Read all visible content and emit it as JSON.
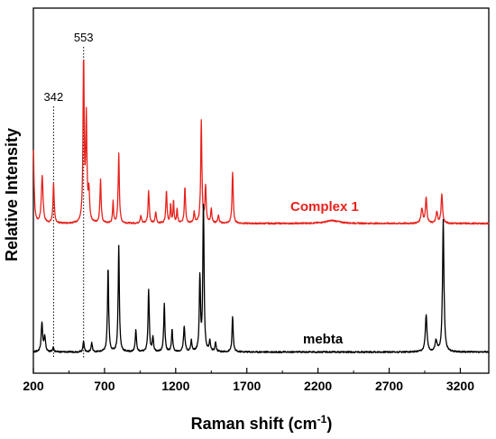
{
  "chart_data": {
    "type": "line",
    "xlabel": "Raman shift (cm",
    "xlabel_sup": "-1",
    "xlabel_end": ")",
    "ylabel": "Relative Intensity",
    "xlim": [
      200,
      3400
    ],
    "ylim": [
      0,
      1.0
    ],
    "x_ticks": [
      200,
      700,
      1200,
      1700,
      2200,
      2700,
      3200
    ],
    "x_tick_labels": [
      "200",
      "700",
      "1200",
      "1700",
      "2200",
      "2700",
      "3200"
    ],
    "y_ticks_shown": false,
    "grid": false,
    "annotations": [
      {
        "label": "342",
        "x": 342
      },
      {
        "label": "553",
        "x": 553
      }
    ],
    "series": [
      {
        "name": "Complex 1",
        "color": "#e8211b",
        "baseline": 0.41,
        "peaks": [
          [
            200,
            0.2,
            6
          ],
          [
            262,
            0.13,
            7
          ],
          [
            342,
            0.11,
            5
          ],
          [
            553,
            0.44,
            5
          ],
          [
            572,
            0.28,
            5
          ],
          [
            590,
            0.08,
            6
          ],
          [
            672,
            0.12,
            5
          ],
          [
            760,
            0.06,
            4
          ],
          [
            800,
            0.19,
            5
          ],
          [
            955,
            0.02,
            6
          ],
          [
            1010,
            0.09,
            5
          ],
          [
            1060,
            0.03,
            5
          ],
          [
            1135,
            0.09,
            5
          ],
          [
            1165,
            0.05,
            4
          ],
          [
            1185,
            0.06,
            4
          ],
          [
            1210,
            0.04,
            4
          ],
          [
            1265,
            0.1,
            5
          ],
          [
            1330,
            0.03,
            5
          ],
          [
            1380,
            0.28,
            5
          ],
          [
            1410,
            0.1,
            5
          ],
          [
            1450,
            0.04,
            5
          ],
          [
            1500,
            0.02,
            6
          ],
          [
            1600,
            0.14,
            5
          ],
          [
            2300,
            0.008,
            60
          ],
          [
            2930,
            0.04,
            8
          ],
          [
            2960,
            0.07,
            6
          ],
          [
            3035,
            0.03,
            7
          ],
          [
            3070,
            0.08,
            6
          ]
        ]
      },
      {
        "name": "mebta",
        "color": "#000000",
        "baseline": 0.058,
        "peaks": [
          [
            260,
            0.08,
            6
          ],
          [
            280,
            0.04,
            6
          ],
          [
            340,
            0.012,
            5
          ],
          [
            553,
            0.03,
            5
          ],
          [
            610,
            0.025,
            5
          ],
          [
            725,
            0.23,
            5
          ],
          [
            800,
            0.29,
            5
          ],
          [
            920,
            0.06,
            5
          ],
          [
            1010,
            0.17,
            5
          ],
          [
            1040,
            0.04,
            5
          ],
          [
            1120,
            0.13,
            5
          ],
          [
            1175,
            0.06,
            5
          ],
          [
            1260,
            0.07,
            6
          ],
          [
            1310,
            0.03,
            5
          ],
          [
            1370,
            0.2,
            5
          ],
          [
            1395,
            0.41,
            5
          ],
          [
            1440,
            0.03,
            5
          ],
          [
            1480,
            0.025,
            5
          ],
          [
            1600,
            0.095,
            5
          ],
          [
            2960,
            0.1,
            7
          ],
          [
            3030,
            0.03,
            8
          ],
          [
            3080,
            0.36,
            6
          ]
        ]
      }
    ]
  }
}
